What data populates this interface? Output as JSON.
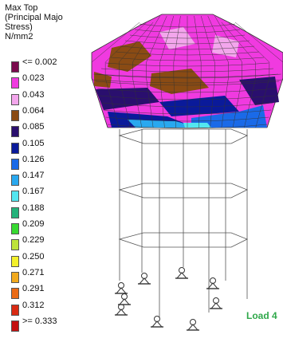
{
  "legend": {
    "title_lines": [
      "Max Top",
      "(Principal Majo",
      "Stress)",
      "N/mm2"
    ],
    "items": [
      {
        "label": "<= 0.002",
        "color": "#7a0a4d"
      },
      {
        "label": "0.023",
        "color": "#f03ae0"
      },
      {
        "label": "0.043",
        "color": "#f3a6ec"
      },
      {
        "label": "0.064",
        "color": "#8a4b14"
      },
      {
        "label": "0.085",
        "color": "#2a0f6e"
      },
      {
        "label": "0.105",
        "color": "#0a1a9a"
      },
      {
        "label": "0.126",
        "color": "#1a6ae8"
      },
      {
        "label": "0.147",
        "color": "#29a8ef"
      },
      {
        "label": "0.167",
        "color": "#53e6f0"
      },
      {
        "label": "0.188",
        "color": "#25b27a"
      },
      {
        "label": "0.209",
        "color": "#37d931"
      },
      {
        "label": "0.229",
        "color": "#bde43a"
      },
      {
        "label": "0.250",
        "color": "#f3f02a"
      },
      {
        "label": "0.271",
        "color": "#f1a91e"
      },
      {
        "label": "0.291",
        "color": "#ea6a15"
      },
      {
        "label": "0.312",
        "color": "#d92a13"
      },
      {
        "label": ">= 0.333",
        "color": "#c40f0f"
      }
    ]
  },
  "load_label": "Load 4",
  "colors": {
    "mesh_lines": "#333333",
    "background": "#ffffff"
  }
}
